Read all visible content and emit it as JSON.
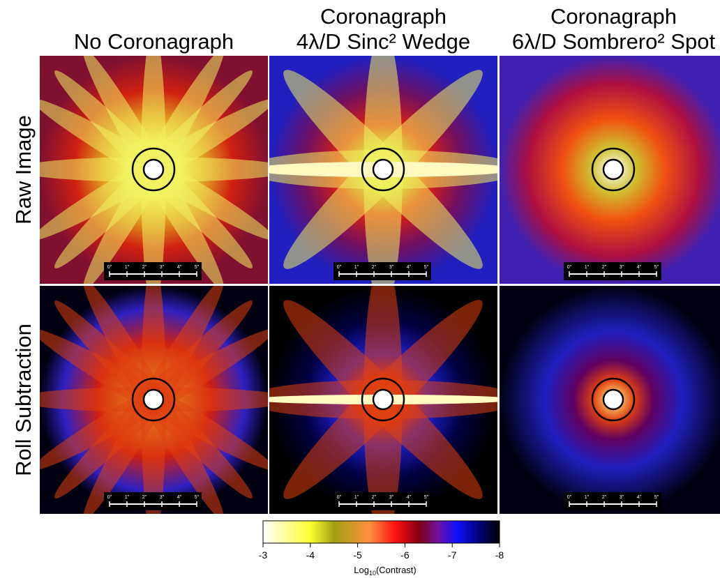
{
  "columns": [
    {
      "title": [
        "No Coronagraph"
      ]
    },
    {
      "title": [
        "Coronagraph",
        "4λ/D Sinc² Wedge"
      ]
    },
    {
      "title": [
        "Coronagraph",
        "6λ/D Sombrero² Spot"
      ]
    }
  ],
  "rows": [
    "Raw Image",
    "Roll Subtraction"
  ],
  "scale_bar": [
    "0\"",
    "1\"",
    "2\"",
    "3\"",
    "4\"",
    "5\""
  ],
  "colorbar": {
    "range": [
      -3,
      -8
    ],
    "ticks": [
      -3,
      -4,
      -5,
      -6,
      -7,
      -8
    ],
    "label": {
      "base": "Log",
      "sub": "10",
      "rest": "(Contrast)"
    }
  }
}
